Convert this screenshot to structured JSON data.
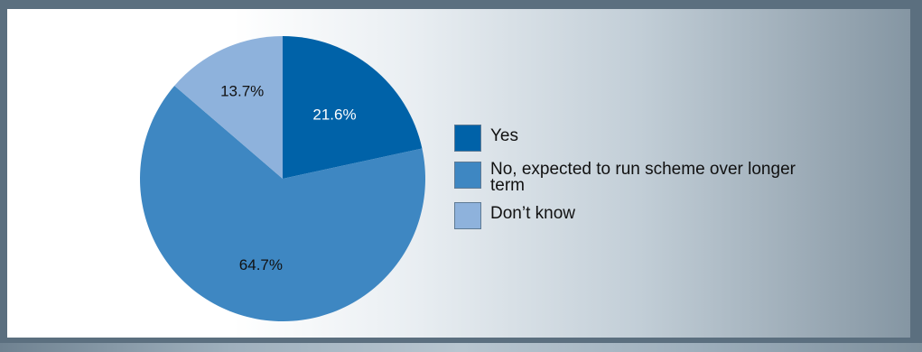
{
  "chart_data": {
    "type": "pie",
    "title": "",
    "slices": [
      {
        "label": "Yes",
        "value": 21.6,
        "value_label": "21.6%",
        "color": "#0062a8",
        "text_color": "#ffffff"
      },
      {
        "label": "No, expected to run scheme over longer term",
        "value": 64.7,
        "value_label": "64.7%",
        "color": "#3e87c2",
        "text_color": "#111111"
      },
      {
        "label": "Don’t know",
        "value": 13.7,
        "value_label": "13.7%",
        "color": "#8eb2dc",
        "text_color": "#111111"
      }
    ],
    "legend_position": "right",
    "start_angle": "12 o'clock",
    "direction": "clockwise"
  },
  "legend": {
    "items": [
      {
        "label": "Yes",
        "color": "#0062a8"
      },
      {
        "label": "No, expected to run scheme over longer term",
        "color": "#3e87c2"
      },
      {
        "label": "Don’t know",
        "color": "#8eb2dc"
      }
    ]
  }
}
